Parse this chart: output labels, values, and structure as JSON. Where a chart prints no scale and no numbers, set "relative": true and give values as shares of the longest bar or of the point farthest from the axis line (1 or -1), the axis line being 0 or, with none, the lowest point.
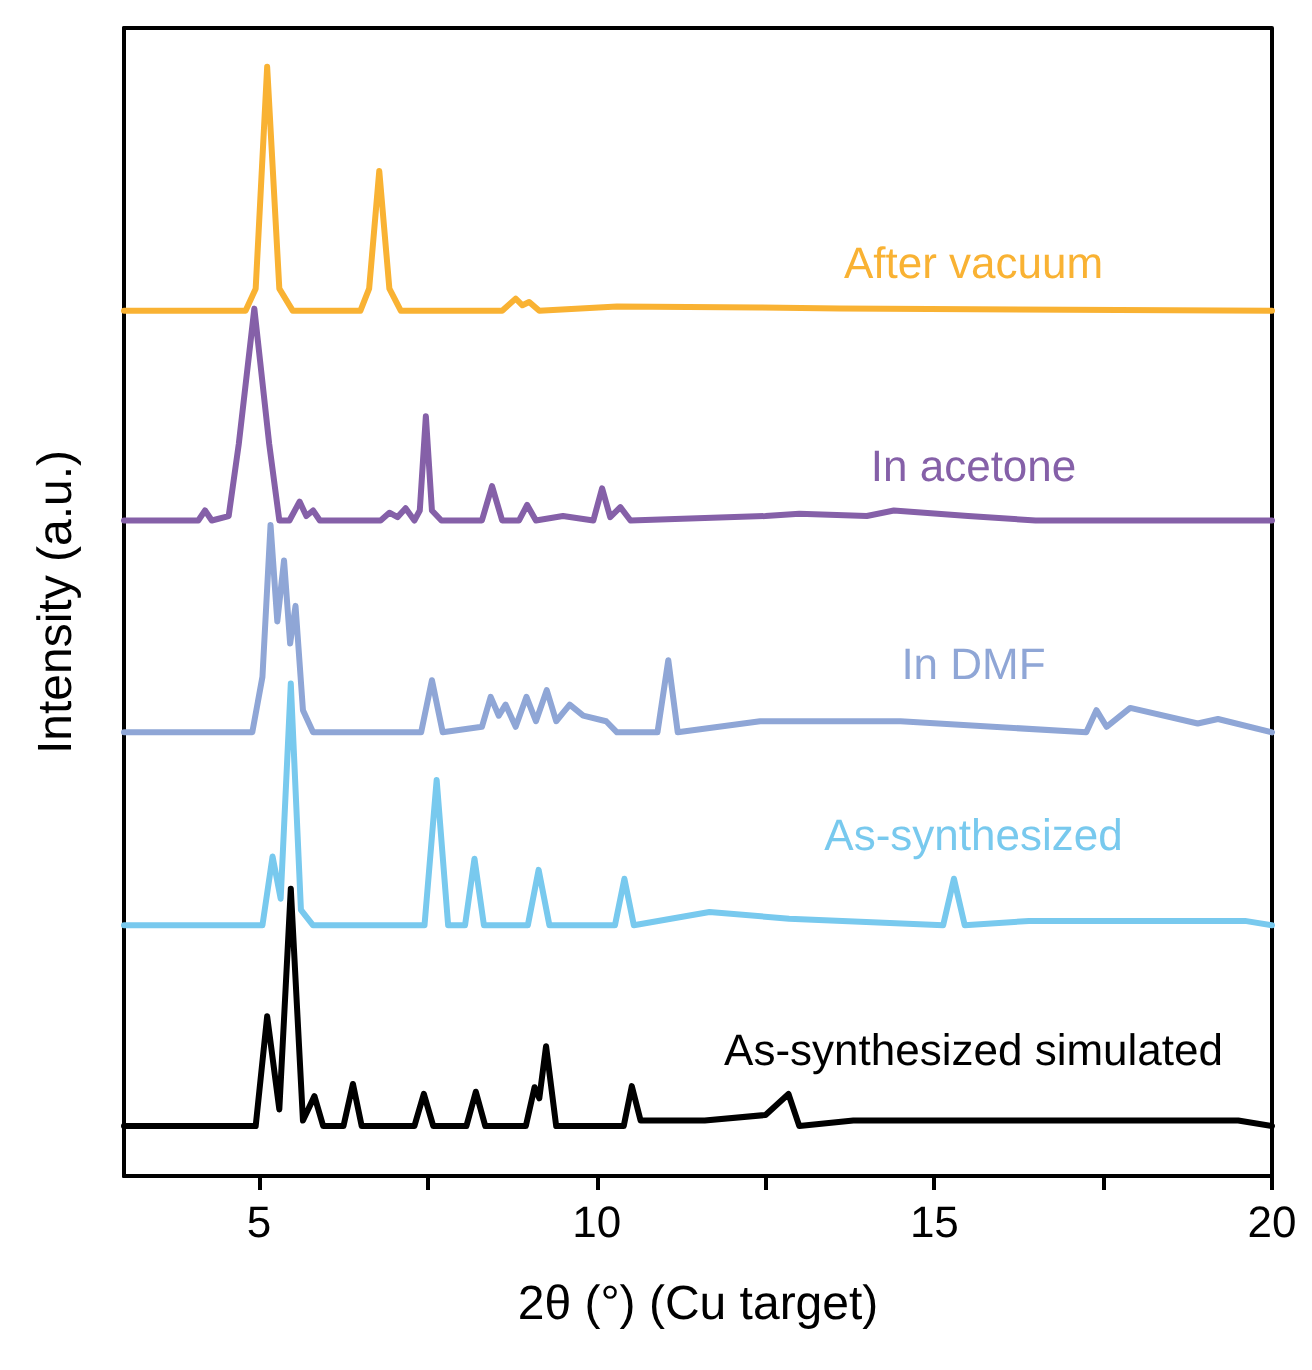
{
  "chart_data": {
    "type": "line",
    "relative": true,
    "xlabel": "2θ (°) (Cu target)",
    "ylabel": "Intensity (a.u.)",
    "xlim": [
      3,
      20
    ],
    "xticks": [
      5,
      {
        "value": 7.5,
        "label": null
      },
      10,
      {
        "value": 12.5,
        "label": null
      },
      15,
      {
        "value": 17.5,
        "label": null
      },
      20
    ],
    "legend": false,
    "grid": false,
    "marker": "none",
    "line_style": "solid",
    "series": [
      {
        "name": "After vacuum",
        "color": "#f9b233",
        "x": [
          3,
          4.8,
          4.95,
          5.12,
          5.3,
          5.5,
          6.5,
          6.63,
          6.78,
          6.93,
          7.1,
          8.6,
          8.8,
          8.9,
          9.0,
          9.15,
          10.3,
          12.4,
          13.6,
          20
        ],
        "values": [
          0.78,
          0.78,
          0.8,
          1.0,
          0.8,
          0.78,
          0.78,
          0.8,
          0.906,
          0.8,
          0.78,
          0.78,
          0.791,
          0.785,
          0.788,
          0.78,
          0.784,
          0.783,
          0.782,
          0.78
        ]
      },
      {
        "name": "In acetone",
        "color": "#8560a8",
        "x": [
          3,
          4.1,
          4.2,
          4.3,
          4.55,
          4.7,
          4.93,
          5.15,
          5.3,
          5.45,
          5.6,
          5.7,
          5.8,
          5.9,
          6.8,
          6.93,
          7.05,
          7.17,
          7.3,
          7.38,
          7.47,
          7.56,
          7.7,
          8.3,
          8.45,
          8.6,
          8.85,
          8.97,
          9.1,
          9.5,
          9.95,
          10.08,
          10.2,
          10.35,
          10.5,
          12.5,
          13.0,
          14.0,
          14.4,
          15.5,
          16.5,
          20
        ],
        "values": [
          0.591,
          0.591,
          0.6,
          0.591,
          0.595,
          0.66,
          0.782,
          0.66,
          0.591,
          0.591,
          0.608,
          0.595,
          0.6,
          0.591,
          0.591,
          0.598,
          0.594,
          0.602,
          0.591,
          0.6,
          0.685,
          0.6,
          0.591,
          0.591,
          0.622,
          0.591,
          0.591,
          0.605,
          0.591,
          0.595,
          0.591,
          0.62,
          0.594,
          0.603,
          0.591,
          0.595,
          0.597,
          0.595,
          0.6,
          0.595,
          0.591,
          0.591
        ]
      },
      {
        "name": "In DMF",
        "color": "#8fa6d6",
        "x": [
          3,
          4.9,
          5.05,
          5.17,
          5.27,
          5.37,
          5.46,
          5.54,
          5.65,
          5.8,
          7.4,
          7.56,
          7.72,
          8.3,
          8.43,
          8.55,
          8.65,
          8.8,
          8.96,
          9.1,
          9.26,
          9.4,
          9.6,
          9.8,
          10.14,
          10.3,
          10.9,
          11.06,
          11.2,
          12.42,
          13.25,
          14.5,
          17.25,
          17.4,
          17.55,
          17.9,
          18.9,
          19.2,
          20
        ],
        "values": [
          0.4,
          0.4,
          0.45,
          0.587,
          0.5,
          0.555,
          0.48,
          0.514,
          0.42,
          0.4,
          0.4,
          0.447,
          0.4,
          0.405,
          0.432,
          0.415,
          0.425,
          0.405,
          0.432,
          0.41,
          0.438,
          0.41,
          0.425,
          0.415,
          0.41,
          0.4,
          0.4,
          0.465,
          0.4,
          0.41,
          0.41,
          0.41,
          0.4,
          0.42,
          0.405,
          0.422,
          0.408,
          0.412,
          0.4
        ]
      },
      {
        "name": "As-synthesized",
        "color": "#78c9ee",
        "x": [
          3,
          5.05,
          5.2,
          5.32,
          5.47,
          5.62,
          5.8,
          7.45,
          7.63,
          7.8,
          8.05,
          8.19,
          8.33,
          8.98,
          9.14,
          9.3,
          10.27,
          10.41,
          10.55,
          11.67,
          12.85,
          15.13,
          15.29,
          15.45,
          16.4,
          19.6,
          20
        ],
        "values": [
          0.226,
          0.226,
          0.288,
          0.25,
          0.444,
          0.24,
          0.226,
          0.226,
          0.357,
          0.226,
          0.226,
          0.286,
          0.226,
          0.226,
          0.276,
          0.226,
          0.226,
          0.268,
          0.226,
          0.238,
          0.232,
          0.226,
          0.268,
          0.226,
          0.23,
          0.23,
          0.226
        ]
      },
      {
        "name": "As-synthesized simulated",
        "color": "#000000",
        "x": [
          3,
          4.95,
          5.12,
          5.3,
          5.47,
          5.65,
          5.82,
          5.95,
          6.25,
          6.39,
          6.52,
          7.3,
          7.44,
          7.58,
          8.07,
          8.21,
          8.35,
          8.95,
          9.08,
          9.15,
          9.25,
          9.4,
          10.4,
          10.52,
          10.65,
          11.0,
          11.6,
          12.5,
          12.84,
          13.0,
          13.8,
          14.9,
          15.4,
          16.6,
          18.1,
          18.6,
          19.5,
          20
        ],
        "values": [
          0.045,
          0.045,
          0.144,
          0.06,
          0.259,
          0.05,
          0.072,
          0.045,
          0.045,
          0.083,
          0.045,
          0.045,
          0.074,
          0.045,
          0.045,
          0.076,
          0.045,
          0.045,
          0.08,
          0.07,
          0.117,
          0.045,
          0.045,
          0.081,
          0.05,
          0.05,
          0.05,
          0.055,
          0.074,
          0.045,
          0.05,
          0.05,
          0.05,
          0.05,
          0.05,
          0.05,
          0.05,
          0.045
        ]
      }
    ]
  }
}
